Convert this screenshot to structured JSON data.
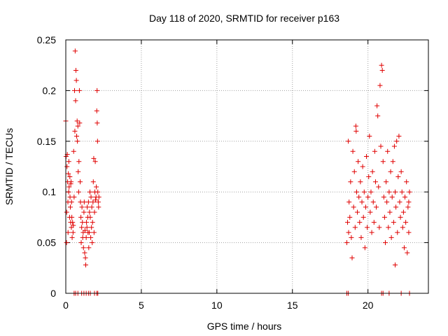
{
  "chart_data": {
    "type": "scatter",
    "title": "Day 118 of 2020, SRMTID for receiver p163",
    "xlabel": "GPS time / hours",
    "ylabel": "SRMTID / TECUs",
    "xlim": [
      0,
      24
    ],
    "ylim": [
      0,
      0.25
    ],
    "xticks": [
      0,
      5,
      10,
      15,
      20
    ],
    "yticks": [
      0,
      0.05,
      0.1,
      0.15,
      0.2,
      0.25
    ],
    "xtick_labels": [
      "0",
      "5",
      "10",
      "15",
      "20"
    ],
    "ytick_labels": [
      "0",
      "0.05",
      "0.1",
      "0.15",
      "0.2",
      "0.25"
    ],
    "grid": true,
    "marker": "+",
    "color": "#e00000",
    "series": [
      {
        "name": "SRMTID",
        "points": [
          [
            0.0,
            0.17
          ],
          [
            0.02,
            0.135
          ],
          [
            0.05,
            0.05
          ],
          [
            0.06,
            0.08
          ],
          [
            0.08,
            0.125
          ],
          [
            0.1,
            0.137
          ],
          [
            0.12,
            0.11
          ],
          [
            0.14,
            0.09
          ],
          [
            0.15,
            0.06
          ],
          [
            0.17,
            0.118
          ],
          [
            0.19,
            0.1
          ],
          [
            0.2,
            0.13
          ],
          [
            0.22,
            0.105
          ],
          [
            0.25,
            0.075
          ],
          [
            0.27,
            0.115
          ],
          [
            0.28,
            0.095
          ],
          [
            0.3,
            0.085
          ],
          [
            0.32,
            0.07
          ],
          [
            0.33,
            0.108
          ],
          [
            0.35,
            0.11
          ],
          [
            0.37,
            0.065
          ],
          [
            0.38,
            0.09
          ],
          [
            0.4,
            0.075
          ],
          [
            0.42,
            0.055
          ],
          [
            0.45,
            0.07
          ],
          [
            0.48,
            0.06
          ],
          [
            0.5,
            0.067
          ],
          [
            0.52,
            0.14
          ],
          [
            0.55,
            0.095
          ],
          [
            0.58,
            0.2
          ],
          [
            0.6,
            0.16
          ],
          [
            0.62,
            0.239
          ],
          [
            0.65,
            0.19
          ],
          [
            0.67,
            0.22
          ],
          [
            0.7,
            0.21
          ],
          [
            0.72,
            0.155
          ],
          [
            0.75,
            0.17
          ],
          [
            0.77,
            0.15
          ],
          [
            0.8,
            0.165
          ],
          [
            0.82,
            0.12
          ],
          [
            0.85,
            0.1
          ],
          [
            0.87,
            0.13
          ],
          [
            0.9,
            0.2
          ],
          [
            0.92,
            0.168
          ],
          [
            0.95,
            0.11
          ],
          [
            0.97,
            0.09
          ],
          [
            1.0,
            0.075
          ],
          [
            1.02,
            0.05
          ],
          [
            1.05,
            0.065
          ],
          [
            1.07,
            0.085
          ],
          [
            1.1,
            0.07
          ],
          [
            1.12,
            0.055
          ],
          [
            1.15,
            0.06
          ],
          [
            1.17,
            0.045
          ],
          [
            1.2,
            0.08
          ],
          [
            1.22,
            0.09
          ],
          [
            1.25,
            0.04
          ],
          [
            1.27,
            0.062
          ],
          [
            1.3,
            0.035
          ],
          [
            1.32,
            0.028
          ],
          [
            1.35,
            0.055
          ],
          [
            1.37,
            0.07
          ],
          [
            1.4,
            0.065
          ],
          [
            1.42,
            0.085
          ],
          [
            1.45,
            0.075
          ],
          [
            1.47,
            0.06
          ],
          [
            1.5,
            0.09
          ],
          [
            1.52,
            0.045
          ],
          [
            1.55,
            0.06
          ],
          [
            1.57,
            0.08
          ],
          [
            1.6,
            0.1
          ],
          [
            1.62,
            0.075
          ],
          [
            1.65,
            0.055
          ],
          [
            1.67,
            0.095
          ],
          [
            1.7,
            0.065
          ],
          [
            1.72,
            0.085
          ],
          [
            1.75,
            0.05
          ],
          [
            1.77,
            0.07
          ],
          [
            1.8,
            0.09
          ],
          [
            1.82,
            0.11
          ],
          [
            1.85,
            0.133
          ],
          [
            1.87,
            0.06
          ],
          [
            1.9,
            0.08
          ],
          [
            1.92,
            0.1
          ],
          [
            1.95,
            0.13
          ],
          [
            1.97,
            0.092
          ],
          [
            2.0,
            0.095
          ],
          [
            2.02,
            0.105
          ],
          [
            2.05,
            0.18
          ],
          [
            2.07,
            0.2
          ],
          [
            2.08,
            0.168
          ],
          [
            2.1,
            0.15
          ],
          [
            2.12,
            0.1
          ],
          [
            2.15,
            0.09
          ],
          [
            2.17,
            0.085
          ],
          [
            2.19,
            0.095
          ],
          [
            0.55,
            0.0
          ],
          [
            0.65,
            0.0
          ],
          [
            0.8,
            0.0
          ],
          [
            1.05,
            0.0
          ],
          [
            1.2,
            0.0
          ],
          [
            1.35,
            0.0
          ],
          [
            1.5,
            0.0
          ],
          [
            1.62,
            0.0
          ],
          [
            1.9,
            0.0
          ],
          [
            2.05,
            0.0
          ],
          [
            2.12,
            0.0
          ],
          [
            18.6,
            0.05
          ],
          [
            18.65,
            0.07
          ],
          [
            18.7,
            0.15
          ],
          [
            18.72,
            0.06
          ],
          [
            18.75,
            0.09
          ],
          [
            18.8,
            0.075
          ],
          [
            18.85,
            0.11
          ],
          [
            18.9,
            0.055
          ],
          [
            18.95,
            0.035
          ],
          [
            19.0,
            0.14
          ],
          [
            19.05,
            0.085
          ],
          [
            19.1,
            0.12
          ],
          [
            19.15,
            0.065
          ],
          [
            19.2,
            0.165
          ],
          [
            19.22,
            0.16
          ],
          [
            19.25,
            0.1
          ],
          [
            19.3,
            0.08
          ],
          [
            19.35,
            0.13
          ],
          [
            19.4,
            0.095
          ],
          [
            19.45,
            0.07
          ],
          [
            19.5,
            0.11
          ],
          [
            19.55,
            0.055
          ],
          [
            19.6,
            0.09
          ],
          [
            19.65,
            0.125
          ],
          [
            19.7,
            0.075
          ],
          [
            19.75,
            0.1
          ],
          [
            19.8,
            0.045
          ],
          [
            19.85,
            0.085
          ],
          [
            19.9,
            0.135
          ],
          [
            19.95,
            0.065
          ],
          [
            20.0,
            0.095
          ],
          [
            20.05,
            0.115
          ],
          [
            20.1,
            0.155
          ],
          [
            20.15,
            0.08
          ],
          [
            20.2,
            0.1
          ],
          [
            20.25,
            0.06
          ],
          [
            20.3,
            0.12
          ],
          [
            20.35,
            0.09
          ],
          [
            20.4,
            0.07
          ],
          [
            20.45,
            0.14
          ],
          [
            20.5,
            0.11
          ],
          [
            20.55,
            0.085
          ],
          [
            20.6,
            0.185
          ],
          [
            20.65,
            0.175
          ],
          [
            20.7,
            0.105
          ],
          [
            20.75,
            0.065
          ],
          [
            20.8,
            0.205
          ],
          [
            20.85,
            0.145
          ],
          [
            20.9,
            0.225
          ],
          [
            20.95,
            0.22
          ],
          [
            21.0,
            0.13
          ],
          [
            21.05,
            0.095
          ],
          [
            21.1,
            0.075
          ],
          [
            21.15,
            0.05
          ],
          [
            21.2,
            0.11
          ],
          [
            21.25,
            0.09
          ],
          [
            21.3,
            0.14
          ],
          [
            21.35,
            0.065
          ],
          [
            21.4,
            0.1
          ],
          [
            21.45,
            0.08
          ],
          [
            21.5,
            0.12
          ],
          [
            21.55,
            0.055
          ],
          [
            21.6,
            0.095
          ],
          [
            21.65,
            0.13
          ],
          [
            21.7,
            0.07
          ],
          [
            21.75,
            0.145
          ],
          [
            21.8,
            0.1
          ],
          [
            21.85,
            0.085
          ],
          [
            21.9,
            0.15
          ],
          [
            21.95,
            0.06
          ],
          [
            22.0,
            0.115
          ],
          [
            22.05,
            0.155
          ],
          [
            22.1,
            0.09
          ],
          [
            22.15,
            0.075
          ],
          [
            22.2,
            0.12
          ],
          [
            22.25,
            0.1
          ],
          [
            22.3,
            0.065
          ],
          [
            22.35,
            0.08
          ],
          [
            22.4,
            0.045
          ],
          [
            22.45,
            0.095
          ],
          [
            22.5,
            0.07
          ],
          [
            22.55,
            0.11
          ],
          [
            22.6,
            0.04
          ],
          [
            22.65,
            0.085
          ],
          [
            22.7,
            0.06
          ],
          [
            22.75,
            0.1
          ],
          [
            21.8,
            0.028
          ],
          [
            22.7,
            0.09
          ],
          [
            18.6,
            0.0
          ],
          [
            18.7,
            0.0
          ],
          [
            20.9,
            0.0
          ],
          [
            21.0,
            0.0
          ],
          [
            21.4,
            0.0
          ],
          [
            22.2,
            0.0
          ],
          [
            22.75,
            0.0
          ]
        ]
      }
    ]
  }
}
